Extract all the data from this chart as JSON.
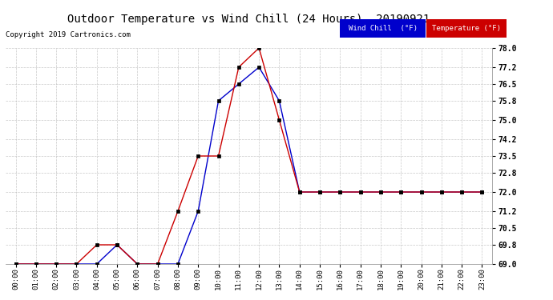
{
  "title": "Outdoor Temperature vs Wind Chill (24 Hours)  20190921",
  "copyright": "Copyright 2019 Cartronics.com",
  "x_labels": [
    "00:00",
    "01:00",
    "02:00",
    "03:00",
    "04:00",
    "05:00",
    "06:00",
    "07:00",
    "08:00",
    "09:00",
    "10:00",
    "11:00",
    "12:00",
    "13:00",
    "14:00",
    "15:00",
    "16:00",
    "17:00",
    "18:00",
    "19:00",
    "20:00",
    "21:00",
    "22:00",
    "23:00"
  ],
  "temperature": [
    69.0,
    69.0,
    69.0,
    69.0,
    69.8,
    69.8,
    69.0,
    69.0,
    71.2,
    73.5,
    73.5,
    77.2,
    78.0,
    75.0,
    72.0,
    72.0,
    72.0,
    72.0,
    72.0,
    72.0,
    72.0,
    72.0,
    72.0,
    72.0
  ],
  "wind_chill": [
    69.0,
    69.0,
    69.0,
    69.0,
    69.0,
    69.8,
    69.0,
    69.0,
    69.0,
    71.2,
    75.8,
    76.5,
    77.2,
    75.8,
    72.0,
    72.0,
    72.0,
    72.0,
    72.0,
    72.0,
    72.0,
    72.0,
    72.0,
    72.0
  ],
  "temp_color": "#cc0000",
  "wind_color": "#0000cc",
  "ylim": [
    69.0,
    78.0
  ],
  "yticks": [
    69.0,
    69.8,
    70.5,
    71.2,
    72.0,
    72.8,
    73.5,
    74.2,
    75.0,
    75.8,
    76.5,
    77.2,
    78.0
  ],
  "background_color": "#ffffff",
  "grid_color": "#bbbbbb",
  "legend_wind_bg": "#0000cc",
  "legend_temp_bg": "#cc0000",
  "legend_text_color": "#ffffff"
}
